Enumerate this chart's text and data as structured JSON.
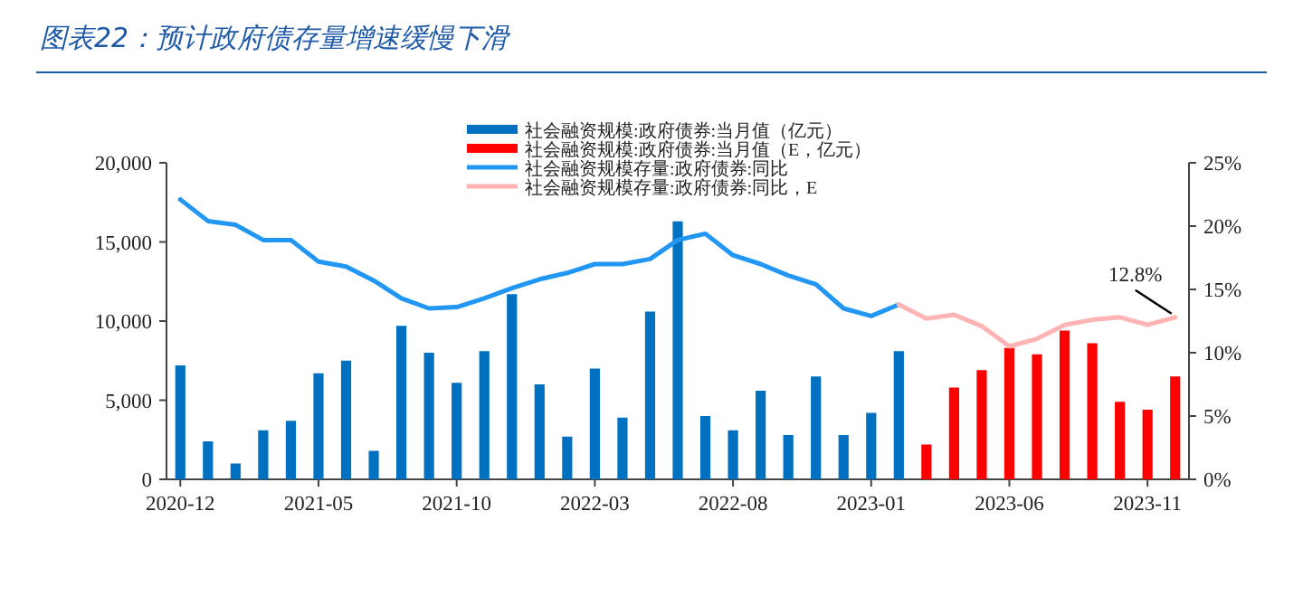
{
  "chart_data": {
    "type": "bar",
    "title": "图表22：预计政府债存量增速缓慢下滑",
    "categories": [
      "2020-12",
      null,
      null,
      null,
      null,
      "2021-05",
      null,
      null,
      null,
      null,
      "2021-10",
      null,
      null,
      null,
      null,
      "2022-03",
      null,
      null,
      null,
      null,
      "2022-08",
      null,
      null,
      null,
      null,
      "2023-01",
      null,
      null,
      null,
      null,
      "2023-06",
      null,
      null,
      null,
      null,
      "2023-11",
      null
    ],
    "series": [
      {
        "name": "社会融资规模:政府债券:当月值（亿元）",
        "color": "#0070c0",
        "values": [
          7200,
          2400,
          1000,
          3100,
          3700,
          6700,
          7500,
          1800,
          9700,
          8000,
          6100,
          8100,
          11700,
          6000,
          2700,
          7000,
          3900,
          10600,
          16300,
          4000,
          3100,
          5600,
          2800,
          6500,
          2800,
          4200,
          8100,
          null,
          null,
          null,
          null,
          null,
          null,
          null,
          null,
          null,
          null
        ]
      },
      {
        "name": "社会融资规模:政府债券:当月值（E，亿元）",
        "color": "#ff0000",
        "values": [
          null,
          null,
          null,
          null,
          null,
          null,
          null,
          null,
          null,
          null,
          null,
          null,
          null,
          null,
          null,
          null,
          null,
          null,
          null,
          null,
          null,
          null,
          null,
          null,
          null,
          null,
          null,
          2200,
          5800,
          6900,
          8300,
          7900,
          9400,
          8600,
          4900,
          4400,
          6500
        ]
      },
      {
        "name": "社会融资规模存量:政府债券:同比",
        "type": "line",
        "axis": "y2",
        "color": "#2196f3",
        "values": [
          22.1,
          20.4,
          20.1,
          18.9,
          18.9,
          17.2,
          16.8,
          15.7,
          14.3,
          13.5,
          13.6,
          14.3,
          15.1,
          15.8,
          16.3,
          17.0,
          17.0,
          17.4,
          18.9,
          19.4,
          17.7,
          17.0,
          16.1,
          15.4,
          13.5,
          12.9,
          13.8,
          null,
          null,
          null,
          null,
          null,
          null,
          null,
          null,
          null,
          null
        ]
      },
      {
        "name": "社会融资规模存量:政府债券:同比，E",
        "type": "line",
        "axis": "y2",
        "color": "#ffb3b3",
        "values": [
          null,
          null,
          null,
          null,
          null,
          null,
          null,
          null,
          null,
          null,
          null,
          null,
          null,
          null,
          null,
          null,
          null,
          null,
          null,
          null,
          null,
          null,
          null,
          null,
          null,
          null,
          13.8,
          12.7,
          13.0,
          12.1,
          10.5,
          11.1,
          12.2,
          12.6,
          12.8,
          12.2,
          12.8
        ]
      }
    ],
    "ylim": [
      0,
      20000
    ],
    "yticks": [
      0,
      {
        "value": 5000,
        "label": "5,000"
      },
      {
        "value": 10000,
        "label": "10,000"
      },
      {
        "value": 15000,
        "label": "15,000"
      },
      {
        "value": 20000,
        "label": "20,000"
      }
    ],
    "y2lim": [
      0,
      25
    ],
    "y2ticks": [
      {
        "value": 0,
        "label": "0%"
      },
      {
        "value": 5,
        "label": "5%"
      },
      {
        "value": 10,
        "label": "10%"
      },
      {
        "value": 15,
        "label": "15%"
      },
      {
        "value": 20,
        "label": "20%"
      },
      {
        "value": 25,
        "label": "25%"
      }
    ],
    "legend": "top",
    "annotations": [
      "12.8%"
    ]
  }
}
